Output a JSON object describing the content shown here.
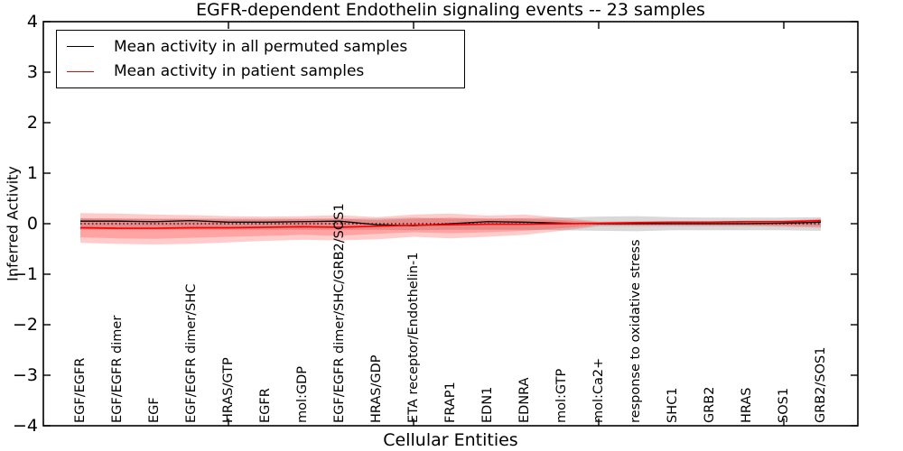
{
  "title": "EGFR-dependent Endothelin signaling events -- 23 samples",
  "legend": {
    "items": [
      {
        "label": "Mean activity in all permuted samples",
        "color": "#000000"
      },
      {
        "label": "Mean activity in patient samples",
        "color": "#ff0000"
      }
    ]
  },
  "chart_data": {
    "type": "line",
    "title": "EGFR-dependent Endothelin signaling events -- 23 samples",
    "xlabel": "Cellular Entities",
    "ylabel": "Inferred Activity",
    "ylim": [
      -4,
      4
    ],
    "yticks": [
      4,
      3,
      2,
      1,
      0,
      -1,
      -2,
      -3,
      -4
    ],
    "x_numeric_tick_positions": [
      5,
      10,
      15,
      20
    ],
    "grid": false,
    "legend_position": "upper left",
    "categories": [
      "EGF/EGFR",
      "EGF/EGFR dimer",
      "EGF",
      "EGF/EGFR dimer/SHC",
      "HRAS/GTP",
      "EGFR",
      "mol:GDP",
      "EGF/EGFR dimer/SHC/GRB2/SOS1",
      "HRAS/GDP",
      "ETA receptor/Endothelin-1",
      "FRAP1",
      "EDN1",
      "EDNRA",
      "mol:GTP",
      "mol:Ca2+",
      "response to oxidative stress",
      "SHC1",
      "GRB2",
      "HRAS",
      "SOS1",
      "GRB2/SOS1"
    ],
    "reference_line": {
      "y": 0,
      "style": "dotted",
      "color": "#000000"
    },
    "series": [
      {
        "name": "Mean activity in all permuted samples",
        "color": "#000000",
        "style": "solid",
        "values": [
          0.05,
          0.05,
          0.04,
          0.06,
          0.03,
          0.03,
          0.04,
          0.05,
          -0.02,
          -0.04,
          0.0,
          0.04,
          0.03,
          0.01,
          0.0,
          0.0,
          0.0,
          0.0,
          0.0,
          0.01,
          0.03
        ]
      },
      {
        "name": "Mean activity in patient samples",
        "color": "#ff0000",
        "style": "solid",
        "values": [
          -0.08,
          -0.09,
          -0.09,
          -0.08,
          -0.08,
          -0.07,
          -0.06,
          -0.07,
          -0.05,
          -0.03,
          -0.02,
          -0.01,
          -0.01,
          0.0,
          0.01,
          0.02,
          0.03,
          0.03,
          0.04,
          0.04,
          0.06
        ]
      }
    ],
    "bands": [
      {
        "name": "permuted-samples-range",
        "color": "rgba(120,120,120,0.28)",
        "upper": [
          0.1,
          0.1,
          0.1,
          0.1,
          0.1,
          0.1,
          0.1,
          0.1,
          0.1,
          0.12,
          0.1,
          0.1,
          0.11,
          0.12,
          0.14,
          0.15,
          0.13,
          0.12,
          0.12,
          0.12,
          0.13
        ],
        "lower": [
          -0.12,
          -0.12,
          -0.12,
          -0.12,
          -0.12,
          -0.12,
          -0.12,
          -0.12,
          -0.12,
          -0.13,
          -0.12,
          -0.12,
          -0.12,
          -0.13,
          -0.14,
          -0.15,
          -0.13,
          -0.13,
          -0.13,
          -0.13,
          -0.14
        ]
      },
      {
        "name": "patient-samples-range-outer",
        "color": "rgba(255,0,0,0.20)",
        "upper": [
          0.21,
          0.2,
          0.18,
          0.17,
          0.15,
          0.14,
          0.15,
          0.17,
          0.13,
          0.18,
          0.2,
          0.16,
          0.18,
          0.12,
          0.04,
          0.05,
          0.05,
          0.05,
          0.05,
          0.06,
          0.1
        ],
        "lower": [
          -0.38,
          -0.4,
          -0.41,
          -0.4,
          -0.37,
          -0.34,
          -0.32,
          -0.33,
          -0.31,
          -0.26,
          -0.29,
          -0.26,
          -0.22,
          -0.14,
          -0.05,
          -0.05,
          -0.05,
          -0.05,
          -0.05,
          -0.06,
          -0.08
        ]
      },
      {
        "name": "patient-samples-range-inner",
        "color": "rgba(255,0,0,0.20)",
        "upper": [
          0.11,
          0.1,
          0.09,
          0.09,
          0.08,
          0.08,
          0.09,
          0.1,
          0.07,
          0.1,
          0.12,
          0.1,
          0.1,
          0.07,
          0.02,
          0.03,
          0.03,
          0.03,
          0.03,
          0.04,
          0.07
        ],
        "lower": [
          -0.27,
          -0.29,
          -0.3,
          -0.28,
          -0.26,
          -0.24,
          -0.22,
          -0.24,
          -0.2,
          -0.17,
          -0.19,
          -0.17,
          -0.14,
          -0.09,
          -0.03,
          -0.03,
          -0.03,
          -0.03,
          -0.03,
          -0.04,
          -0.05
        ]
      }
    ]
  }
}
